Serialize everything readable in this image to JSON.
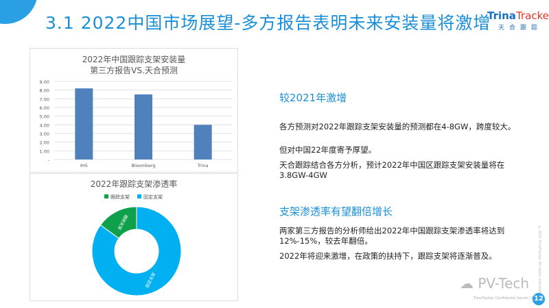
{
  "header": {
    "title": "3.1 2022中国市场展望-多方报告表明未来安装量将激增",
    "logo_en_a": "Trina",
    "logo_en_b": "Tracker",
    "logo_cn": "天合跟踪"
  },
  "chart_data": [
    {
      "type": "bar",
      "title": "2022年中国跟踪支架安装量",
      "subtitle": "第三方报告VS.天合预测",
      "categories": [
        "IHS",
        "Bloomberg",
        "Trina"
      ],
      "values": [
        8.2,
        7.5,
        4.0
      ],
      "ylim": [
        0,
        9
      ],
      "yticks": [
        "-",
        "1.00",
        "2.00",
        "3.00",
        "4.00",
        "5.00",
        "6.00",
        "7.00",
        "8.00",
        "9.00"
      ],
      "grid": true,
      "color": "#4f81bd"
    },
    {
      "type": "pie",
      "donut": true,
      "title": "2022年跟踪支架渗透率",
      "legend": "top",
      "categories": [
        "跟踪支架",
        "固定支架"
      ],
      "values": [
        15,
        85
      ],
      "colors": [
        "#0ea04b",
        "#00b0f0"
      ]
    }
  ],
  "section1": {
    "heading": "较2021年激增",
    "paras": [
      "各方预测对2022年跟踪支架安装量的预测都在4-8GW，跨度较大。",
      "但对中国22年度寄予厚望。",
      "天合跟踪结合各方分析，预计2022年中国区跟踪支架安装量将在3.8GW-4GW"
    ]
  },
  "section2": {
    "heading": "支架渗透率有望翻倍增长",
    "paras": [
      "两家第三方报告的分析师给出2022年中国跟踪支架渗透率将达到12%-15%，较去年翻倍。",
      "2022年将迎来激增，在政策的扶持下，跟踪支架将逐渐普及。"
    ]
  },
  "footer": {
    "watermark": "PV-Tech",
    "confidential": "TrinaTracker Confidential Secret / 机密",
    "copyright": "©2021 TrinaTracker All rights reserved",
    "page": "12"
  }
}
